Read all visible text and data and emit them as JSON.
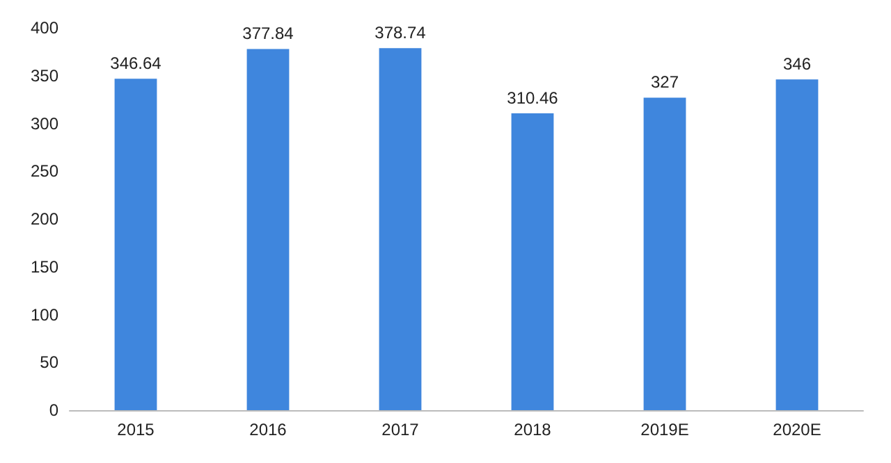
{
  "chart_data": {
    "type": "bar",
    "categories": [
      "2015",
      "2016",
      "2017",
      "2018",
      "2019E",
      "2020E"
    ],
    "values": [
      346.64,
      377.84,
      378.74,
      310.46,
      327,
      346
    ],
    "color": "#3f86dd",
    "ylim": [
      0,
      400
    ],
    "yticks": [
      0,
      50,
      100,
      150,
      200,
      250,
      300,
      350,
      400
    ],
    "grid": false,
    "data_labels": true
  }
}
